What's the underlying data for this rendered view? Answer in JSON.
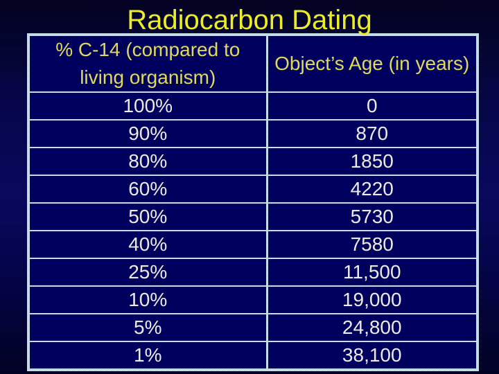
{
  "slide": {
    "title": "Radiocarbon Dating"
  },
  "table": {
    "col1_header": "% C-14 (compared to living organism)",
    "col2_header": "Object’s Age (in years)",
    "rows": [
      {
        "percent": "100%",
        "age": "0"
      },
      {
        "percent": "90%",
        "age": "870"
      },
      {
        "percent": "80%",
        "age": "1850"
      },
      {
        "percent": "60%",
        "age": "4220"
      },
      {
        "percent": "50%",
        "age": "5730"
      },
      {
        "percent": "40%",
        "age": "7580"
      },
      {
        "percent": "25%",
        "age": "11,500"
      },
      {
        "percent": "10%",
        "age": "19,000"
      },
      {
        "percent": "5%",
        "age": "24,800"
      },
      {
        "percent": "1%",
        "age": "38,100"
      }
    ]
  },
  "chart_data": {
    "type": "table",
    "title": "Radiocarbon Dating",
    "columns": [
      "% C-14 (compared to living organism)",
      "Object’s Age (in years)"
    ],
    "rows": [
      [
        "100%",
        "0"
      ],
      [
        "90%",
        "870"
      ],
      [
        "80%",
        "1850"
      ],
      [
        "60%",
        "4220"
      ],
      [
        "50%",
        "5730"
      ],
      [
        "40%",
        "7580"
      ],
      [
        "25%",
        "11,500"
      ],
      [
        "10%",
        "19,000"
      ],
      [
        "5%",
        "24,800"
      ],
      [
        "1%",
        "38,100"
      ]
    ],
    "numeric": {
      "percent_c14": [
        100,
        90,
        80,
        60,
        50,
        40,
        25,
        10,
        5,
        1
      ],
      "age_years": [
        0,
        870,
        1850,
        4220,
        5730,
        7580,
        11500,
        19000,
        24800,
        38100
      ]
    }
  },
  "colors": {
    "background_mid": "#0a0a5e",
    "cell_background": "#00005e",
    "table_border": "#d4eef8",
    "title_text": "#ffff35",
    "header_text": "#f0e96d",
    "row_text": "#ffffff"
  }
}
